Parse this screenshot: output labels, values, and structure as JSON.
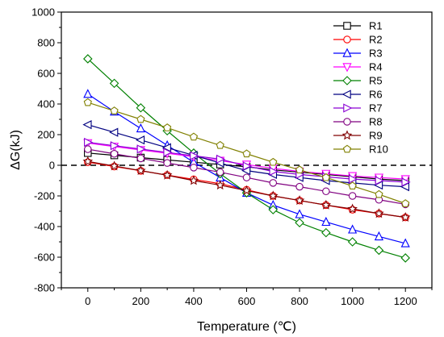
{
  "chart_data": {
    "type": "line",
    "xlabel": "Temperature (℃)",
    "ylabel": "ΔG(kJ)",
    "xlim": [
      -100,
      1300
    ],
    "ylim": [
      -800,
      1000
    ],
    "xticks": [
      0,
      200,
      400,
      600,
      800,
      1000,
      1200
    ],
    "yticks": [
      -800,
      -600,
      -400,
      -200,
      0,
      200,
      400,
      600,
      800,
      1000
    ],
    "x": [
      0,
      100,
      200,
      300,
      400,
      500,
      600,
      700,
      800,
      900,
      1000,
      1100,
      1200
    ],
    "reference_line": {
      "y": 0,
      "style": "dashed"
    },
    "legend_position": "top-right",
    "grid": false,
    "series": [
      {
        "name": "R1",
        "color": "#000000",
        "marker": "square",
        "values": [
          80,
          65,
          50,
          35,
          20,
          5,
          -10,
          -30,
          -45,
          -60,
          -75,
          -90,
          -100
        ]
      },
      {
        "name": "R2",
        "color": "#ff0000",
        "marker": "circle",
        "values": [
          20,
          -8,
          -36,
          -64,
          -92,
          -120,
          -160,
          -200,
          -230,
          -260,
          -290,
          -315,
          -340
        ]
      },
      {
        "name": "R3",
        "color": "#0000ff",
        "marker": "triangle-up",
        "values": [
          465,
          350,
          240,
          130,
          20,
          -80,
          -180,
          -260,
          -320,
          -370,
          -420,
          -465,
          -510
        ]
      },
      {
        "name": "R4",
        "color": "#ff00ff",
        "marker": "triangle-down",
        "values": [
          145,
          122,
          100,
          78,
          56,
          30,
          5,
          -20,
          -40,
          -55,
          -70,
          -80,
          -90
        ]
      },
      {
        "name": "R5",
        "color": "#008000",
        "marker": "diamond",
        "values": [
          695,
          535,
          375,
          225,
          80,
          -55,
          -180,
          -290,
          -375,
          -440,
          -500,
          -555,
          -605
        ]
      },
      {
        "name": "R6",
        "color": "#000080",
        "marker": "triangle-left",
        "values": [
          265,
          215,
          165,
          115,
          65,
          15,
          -35,
          -60,
          -80,
          -100,
          -115,
          -130,
          -140
        ]
      },
      {
        "name": "R7",
        "color": "#8a00d4",
        "marker": "triangle-right",
        "values": [
          150,
          128,
          106,
          84,
          62,
          40,
          -5,
          -40,
          -60,
          -75,
          -90,
          -100,
          -110
        ]
      },
      {
        "name": "R8",
        "color": "#800080",
        "marker": "circle",
        "values": [
          105,
          75,
          45,
          15,
          -15,
          -45,
          -80,
          -115,
          -140,
          -170,
          -200,
          -225,
          -255
        ]
      },
      {
        "name": "R9",
        "color": "#800000",
        "marker": "star",
        "values": [
          25,
          -5,
          -35,
          -65,
          -100,
          -130,
          -165,
          -200,
          -230,
          -260,
          -285,
          -315,
          -340
        ]
      },
      {
        "name": "R10",
        "color": "#808000",
        "marker": "pentagon",
        "values": [
          410,
          355,
          300,
          245,
          185,
          130,
          75,
          20,
          -30,
          -80,
          -135,
          -190,
          -250
        ]
      }
    ]
  }
}
